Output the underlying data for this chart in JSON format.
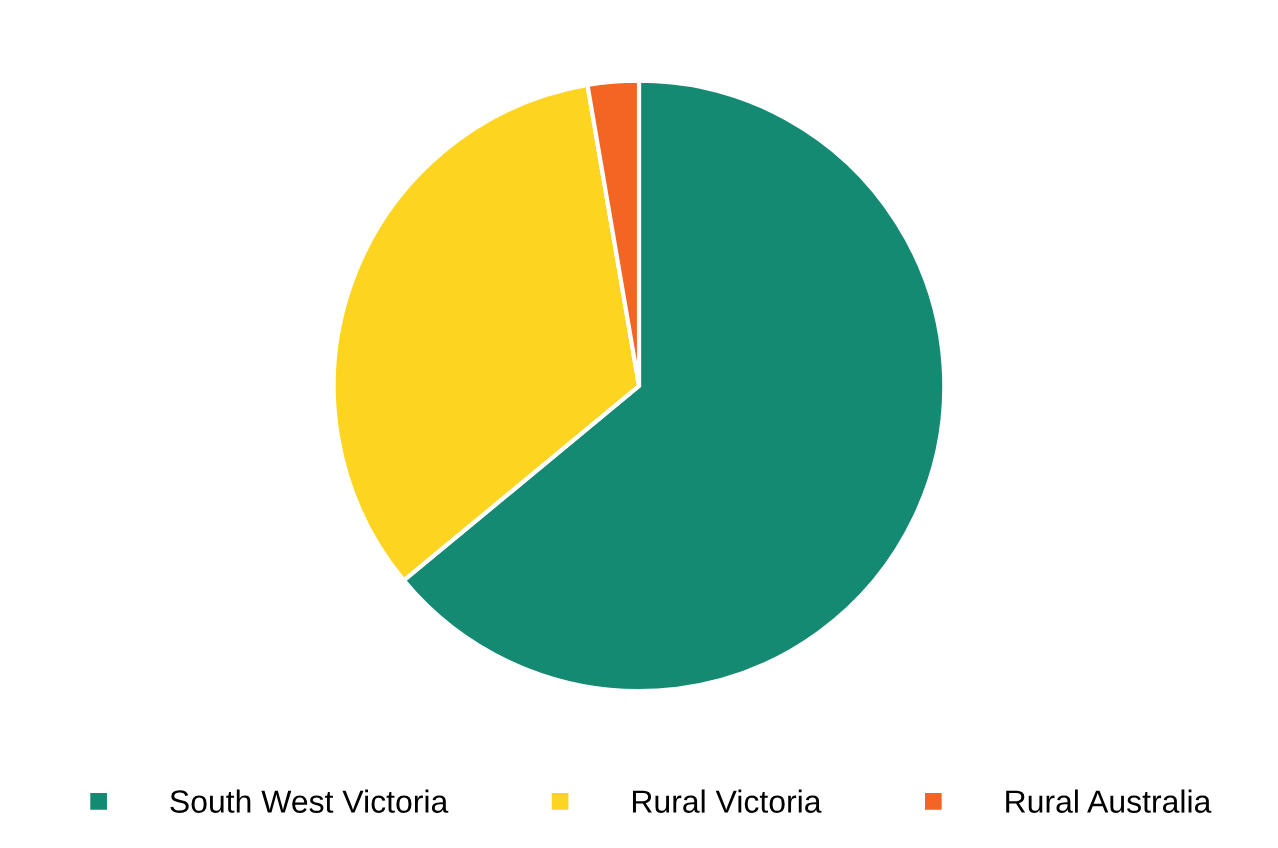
{
  "chart_data": {
    "type": "pie",
    "categories": [
      "South West Victoria",
      "Rural Victoria",
      "Rural Australia"
    ],
    "values": [
      64,
      33.3,
      2.7
    ],
    "colors": [
      "#158a73",
      "#fdd520",
      "#f26523"
    ],
    "legend": "bottom"
  }
}
